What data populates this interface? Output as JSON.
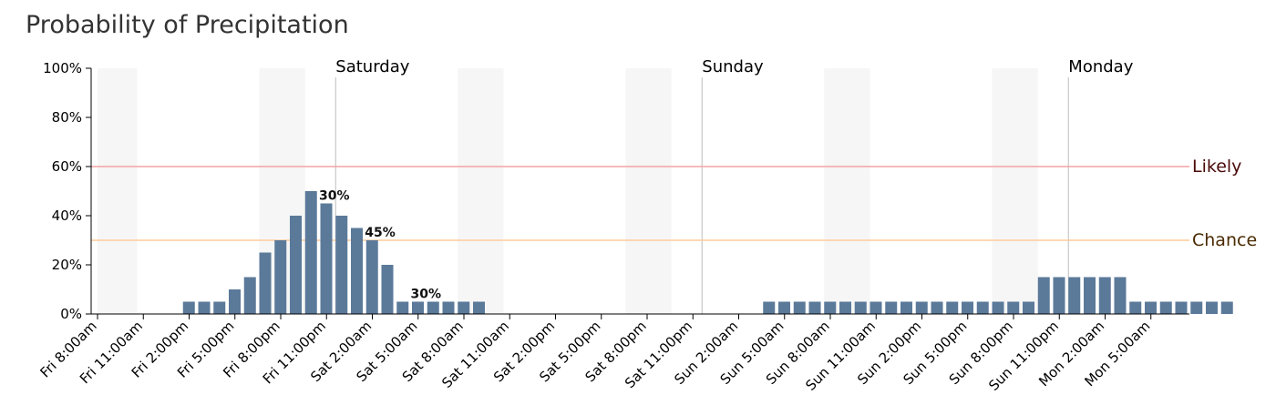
{
  "chart_data": {
    "type": "bar",
    "title": "Probability of Precipitation",
    "y_ticks": [
      "0%",
      "20%",
      "40%",
      "60%",
      "80%",
      "100%"
    ],
    "ylim": [
      0,
      100
    ],
    "x_tick_labels": [
      "Fri 8:00am",
      "Fri 11:00am",
      "Fri 2:00pm",
      "Fri 5:00pm",
      "Fri 8:00pm",
      "Fri 11:00pm",
      "Sat 2:00am",
      "Sat 5:00am",
      "Sat 8:00am",
      "Sat 11:00am",
      "Sat 2:00pm",
      "Sat 5:00pm",
      "Sat 8:00pm",
      "Sat 11:00pm",
      "Sun 2:00am",
      "Sun 5:00am",
      "Sun 8:00am",
      "Sun 11:00am",
      "Sun 2:00pm",
      "Sun 5:00pm",
      "Sun 8:00pm",
      "Sun 11:00pm",
      "Mon 2:00am",
      "Mon 5:00am"
    ],
    "day_labels": [
      "Saturday",
      "Sunday",
      "Monday"
    ],
    "thresholds": [
      {
        "label": "Likely",
        "value": 60,
        "color": "#f4a3a3",
        "text_color": "#4a0a0a"
      },
      {
        "label": "Chance",
        "value": 30,
        "color": "#ffcc99",
        "text_color": "#4a2a00"
      }
    ],
    "bar_color": "#5b7a9a",
    "hourly_values": [
      0,
      0,
      0,
      5,
      5,
      5,
      10,
      15,
      25,
      30,
      40,
      50,
      45,
      40,
      35,
      30,
      20,
      5,
      5,
      5,
      5,
      5,
      5,
      0,
      0,
      0,
      0,
      0,
      0,
      0,
      0,
      0,
      0,
      0,
      0,
      0,
      0,
      0,
      0,
      0,
      0,
      5,
      5,
      5,
      5,
      5,
      5,
      5,
      5,
      5,
      5,
      5,
      5,
      5,
      5,
      5,
      5,
      5,
      5,
      15,
      15,
      15,
      15,
      15,
      15,
      5,
      5,
      5,
      5,
      5,
      5,
      5
    ],
    "bar_labels": [
      {
        "index": 9,
        "text": "30%"
      },
      {
        "index": 12,
        "text": "45%"
      },
      {
        "index": 15,
        "text": "30%"
      }
    ]
  }
}
